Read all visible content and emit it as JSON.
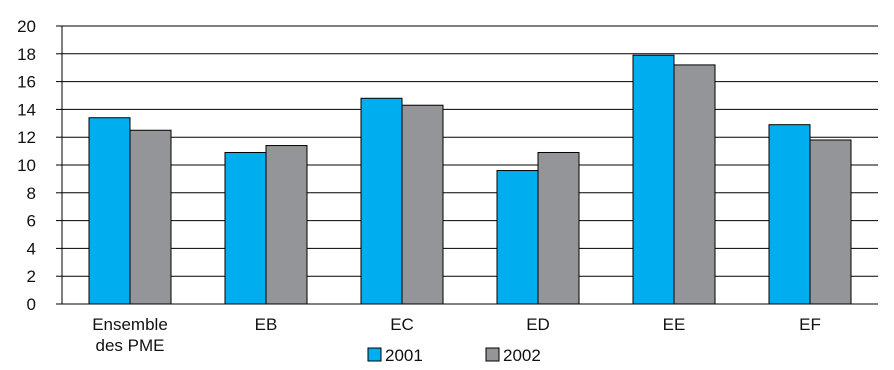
{
  "chart_data": {
    "type": "bar",
    "categories": [
      "Ensemble des PME",
      "EB",
      "EC",
      "ED",
      "EE",
      "EF"
    ],
    "category_lines": [
      [
        "Ensemble",
        "des PME"
      ],
      [
        "EB"
      ],
      [
        "EC"
      ],
      [
        "ED"
      ],
      [
        "EE"
      ],
      [
        "EF"
      ]
    ],
    "series": [
      {
        "name": "2001",
        "color": "#00aeef",
        "values": [
          13.4,
          10.9,
          14.8,
          9.6,
          17.9,
          12.9
        ]
      },
      {
        "name": "2002",
        "color": "#939598",
        "values": [
          12.5,
          11.4,
          14.3,
          10.9,
          17.2,
          11.8
        ]
      }
    ],
    "ylim": [
      0,
      20
    ],
    "yticks": [
      0,
      2,
      4,
      6,
      8,
      10,
      12,
      14,
      16,
      18,
      20
    ],
    "grid": true,
    "legend_position": "bottom"
  }
}
